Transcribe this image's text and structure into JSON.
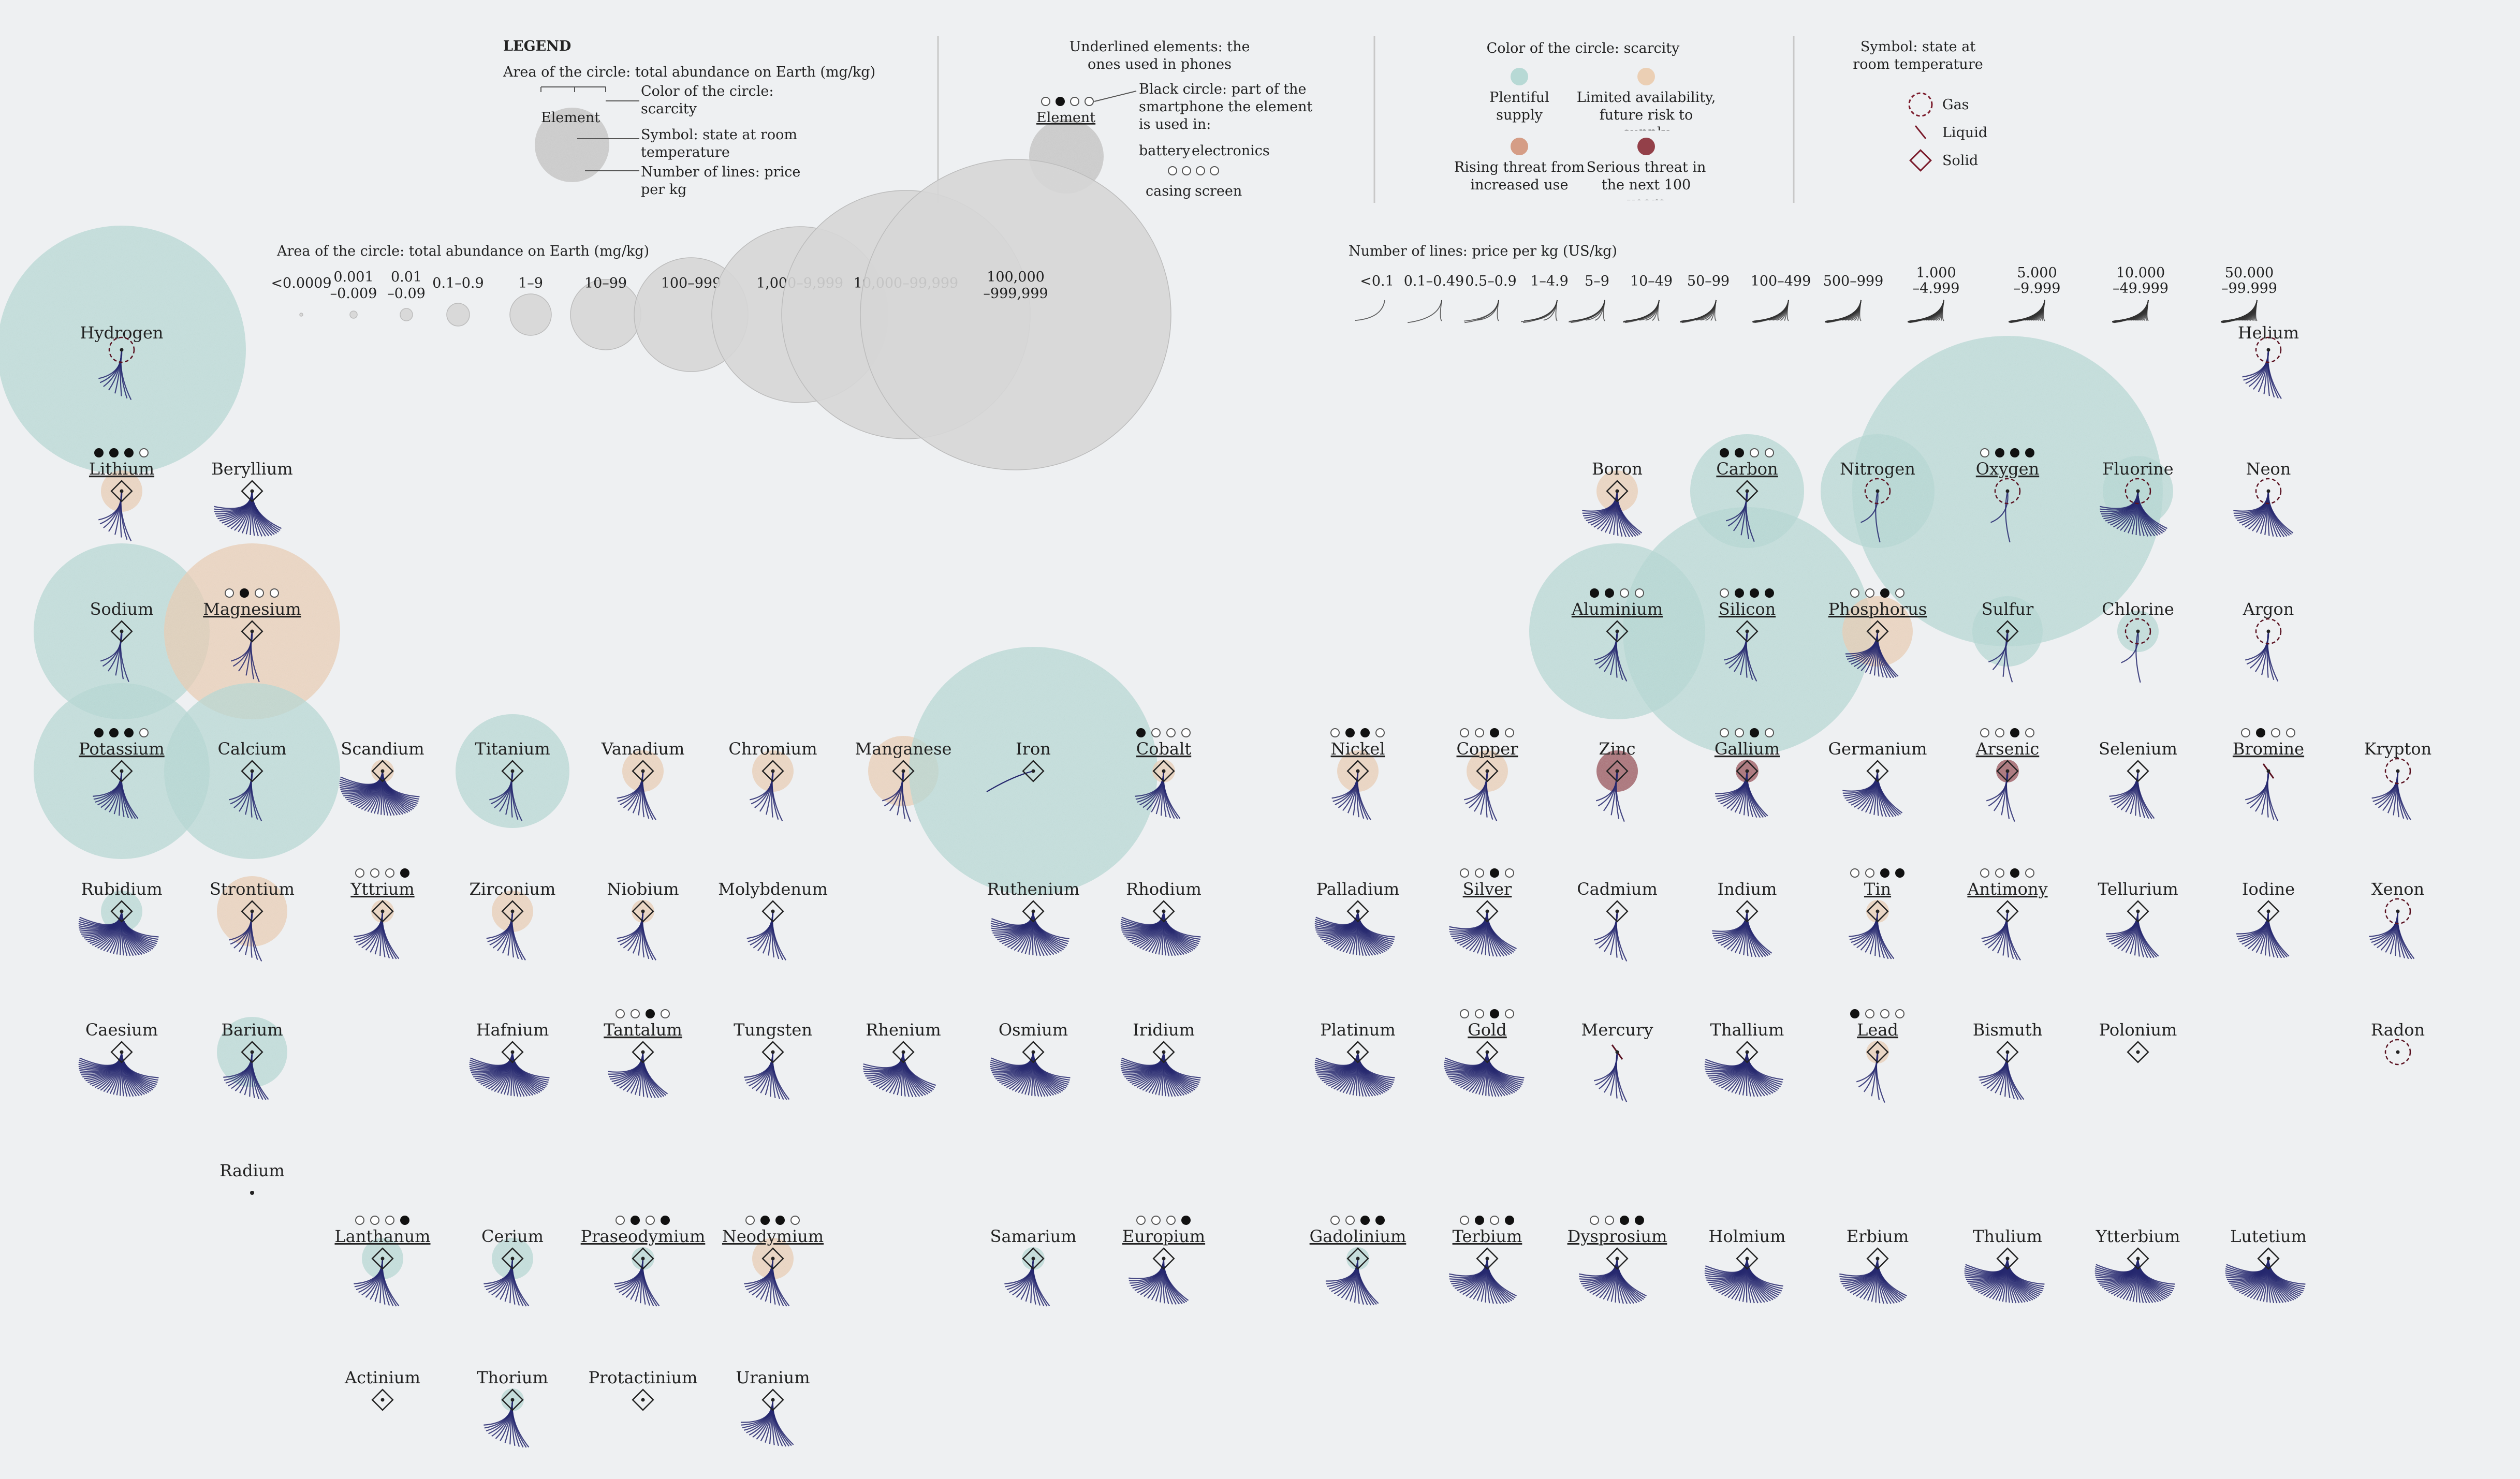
{
  "legend": {
    "title": "LEGEND",
    "area_desc": "Area of the circle: total abundance on Earth (mg/kg)",
    "example_element": "Element",
    "ann_color": "Color of the circle: scarcity",
    "ann_symbol": "Symbol: state at room temperature",
    "ann_lines": "Number of lines: price per kg",
    "phones_title": "Underlined elements: the ones used in phones",
    "phones_black": "Black circle: part of the smartphone the element is used in:",
    "phones_parts": [
      "battery",
      "electronics",
      "casing",
      "screen"
    ],
    "scarcity_title": "Color of the circle: scarcity",
    "scarcity_items": [
      {
        "label": "Plentiful supply",
        "color": "#b7d9d5"
      },
      {
        "label": "Limited availability, future risk to supply",
        "color": "#ebcfb4"
      },
      {
        "label": "Rising threat from increased use",
        "color": "#d59d86"
      },
      {
        "label": "Serious threat in the next 100 years",
        "color": "#934049"
      }
    ],
    "state_title": "Symbol: state at room temperature",
    "states": [
      "Gas",
      "Liquid",
      "Solid"
    ]
  },
  "size_scale": {
    "title": "Area of the circle: total abundance on Earth (mg/kg)",
    "bins": [
      "<0.0009",
      "0.001 –0.009",
      "0.01 –0.09",
      "0.1–0.9",
      "1–9",
      "10–99",
      "100–999",
      "1,000–9,999",
      "10,000–99,999",
      "100,000 –999,999"
    ]
  },
  "price_scale": {
    "title": "Number of lines: price per kg (US/kg)",
    "bins": [
      "<0.1",
      "0.1–0.49",
      "0.5–0.9",
      "1–4.9",
      "5–9",
      "10–49",
      "50–99",
      "100–499",
      "500–999",
      "1.000 –4.999",
      "5.000 –9.999",
      "10.000 –49.999",
      "50.000 –99.999"
    ]
  },
  "colors": {
    "plentiful": "#b7d9d5",
    "limited": "#ebcfb4",
    "rising": "#d59d86",
    "serious": "#934049",
    "lines": "#26286e",
    "gray": "#d4d4d4"
  },
  "elements": [
    {
      "name": "Hydrogen",
      "row": 0,
      "col": 0,
      "a": 8,
      "s": 0,
      "st": "g",
      "p": 4,
      "ph": null
    },
    {
      "name": "Helium",
      "row": 0,
      "col": 17,
      "a": 0,
      "s": 3,
      "st": "g",
      "p": 5,
      "ph": null
    },
    {
      "name": "Lithium",
      "row": 1,
      "col": 0,
      "a": 4,
      "s": 1,
      "st": "s",
      "p": 4,
      "ph": [
        1,
        1,
        1,
        0
      ]
    },
    {
      "name": "Beryllium",
      "row": 1,
      "col": 1,
      "a": 2,
      "s": 0,
      "st": "s",
      "p": 9,
      "ph": null
    },
    {
      "name": "Boron",
      "row": 1,
      "col": 12,
      "a": 4,
      "s": 1,
      "st": "s",
      "p": 8,
      "ph": null
    },
    {
      "name": "Carbon",
      "row": 1,
      "col": 13,
      "a": 6,
      "s": 0,
      "st": "s",
      "p": 3,
      "ph": [
        1,
        1,
        0,
        0
      ]
    },
    {
      "name": "Nitrogen",
      "row": 1,
      "col": 14,
      "a": 6,
      "s": 0,
      "st": "g",
      "p": 1,
      "ph": null
    },
    {
      "name": "Oxygen",
      "row": 1,
      "col": 15,
      "a": 9,
      "s": 0,
      "st": "g",
      "p": 1,
      "ph": [
        0,
        1,
        1,
        1
      ]
    },
    {
      "name": "Fluorine",
      "row": 1,
      "col": 16,
      "a": 5,
      "s": 0,
      "st": "g",
      "p": 9,
      "ph": null
    },
    {
      "name": "Neon",
      "row": 1,
      "col": 17,
      "a": 0,
      "s": 0,
      "st": "g",
      "p": 8,
      "ph": null
    },
    {
      "name": "Sodium",
      "row": 2,
      "col": 0,
      "a": 7,
      "s": 0,
      "st": "s",
      "p": 3,
      "ph": null
    },
    {
      "name": "Magnesium",
      "row": 2,
      "col": 1,
      "a": 7,
      "s": 1,
      "st": "s",
      "p": 3,
      "ph": [
        0,
        1,
        0,
        0
      ]
    },
    {
      "name": "Aluminium",
      "row": 2,
      "col": 12,
      "a": 7,
      "s": 0,
      "st": "s",
      "p": 4,
      "ph": [
        1,
        1,
        0,
        0
      ]
    },
    {
      "name": "Silicon",
      "row": 2,
      "col": 13,
      "a": 8,
      "s": 0,
      "st": "s",
      "p": 4,
      "ph": [
        0,
        1,
        1,
        1
      ]
    },
    {
      "name": "Phosphorus",
      "row": 2,
      "col": 14,
      "a": 5,
      "s": 1,
      "st": "s",
      "p": 7,
      "ph": [
        0,
        0,
        1,
        0
      ]
    },
    {
      "name": "Sulfur",
      "row": 2,
      "col": 15,
      "a": 5,
      "s": 0,
      "st": "s",
      "p": 2,
      "ph": null
    },
    {
      "name": "Chlorine",
      "row": 2,
      "col": 16,
      "a": 4,
      "s": 0,
      "st": "g",
      "p": 1,
      "ph": null
    },
    {
      "name": "Argon",
      "row": 2,
      "col": 17,
      "a": 2,
      "s": 0,
      "st": "g",
      "p": 4,
      "ph": null
    },
    {
      "name": "Potassium",
      "row": 3,
      "col": 0,
      "a": 7,
      "s": 0,
      "st": "s",
      "p": 6,
      "ph": [
        1,
        1,
        1,
        0
      ]
    },
    {
      "name": "Calcium",
      "row": 3,
      "col": 1,
      "a": 7,
      "s": 0,
      "st": "s",
      "p": 4,
      "ph": null
    },
    {
      "name": "Scandium",
      "row": 3,
      "col": 2,
      "a": 3,
      "s": 1,
      "st": "s",
      "p": 12,
      "ph": null
    },
    {
      "name": "Titanium",
      "row": 3,
      "col": 3,
      "a": 6,
      "s": 0,
      "st": "s",
      "p": 4,
      "ph": null
    },
    {
      "name": "Vanadium",
      "row": 3,
      "col": 4,
      "a": 4,
      "s": 1,
      "st": "s",
      "p": 5,
      "ph": null
    },
    {
      "name": "Chromium",
      "row": 3,
      "col": 5,
      "a": 4,
      "s": 1,
      "st": "s",
      "p": 4,
      "ph": null
    },
    {
      "name": "Manganese",
      "row": 3,
      "col": 6,
      "a": 5,
      "s": 1,
      "st": "s",
      "p": 3,
      "ph": null
    },
    {
      "name": "Iron",
      "row": 3,
      "col": 7,
      "a": 8,
      "s": 0,
      "st": "s",
      "p": 0,
      "ph": null
    },
    {
      "name": "Cobalt",
      "row": 3,
      "col": 8,
      "a": 3,
      "s": 1,
      "st": "s",
      "p": 6,
      "ph": [
        1,
        0,
        0,
        0
      ]
    },
    {
      "name": "Nickel",
      "row": 3,
      "col": 10,
      "a": 4,
      "s": 1,
      "st": "s",
      "p": 5,
      "ph": [
        0,
        1,
        1,
        0
      ]
    },
    {
      "name": "Copper",
      "row": 3,
      "col": 11,
      "a": 4,
      "s": 1,
      "st": "s",
      "p": 4,
      "ph": [
        0,
        0,
        1,
        0
      ]
    },
    {
      "name": "Zinc",
      "row": 3,
      "col": 12,
      "a": 4,
      "s": 3,
      "st": "s",
      "p": 3,
      "ph": null
    },
    {
      "name": "Gallium",
      "row": 3,
      "col": 13,
      "a": 3,
      "s": 3,
      "st": "s",
      "p": 7,
      "ph": [
        0,
        0,
        1,
        0
      ]
    },
    {
      "name": "Germanium",
      "row": 3,
      "col": 14,
      "a": 2,
      "s": 3,
      "st": "s",
      "p": 8,
      "ph": null
    },
    {
      "name": "Arsenic",
      "row": 3,
      "col": 15,
      "a": 3,
      "s": 3,
      "st": "s",
      "p": 3,
      "ph": [
        0,
        0,
        1,
        0
      ]
    },
    {
      "name": "Selenium",
      "row": 3,
      "col": 16,
      "a": 1,
      "s": 1,
      "st": "s",
      "p": 6,
      "ph": null
    },
    {
      "name": "Bromine",
      "row": 3,
      "col": 17,
      "a": 2,
      "s": 0,
      "st": "l",
      "p": 4,
      "ph": [
        0,
        1,
        0,
        0
      ]
    },
    {
      "name": "Krypton",
      "row": 3,
      "col": 18,
      "a": 0,
      "s": 0,
      "st": "g",
      "p": 5,
      "ph": null
    },
    {
      "name": "Rubidium",
      "row": 4,
      "col": 0,
      "a": 4,
      "s": 0,
      "st": "s",
      "p": 12,
      "ph": null
    },
    {
      "name": "Strontium",
      "row": 4,
      "col": 1,
      "a": 5,
      "s": 1,
      "st": "s",
      "p": 4,
      "ph": null
    },
    {
      "name": "Yttrium",
      "row": 4,
      "col": 2,
      "a": 3,
      "s": 1,
      "st": "s",
      "p": 6,
      "ph": [
        0,
        0,
        0,
        1
      ]
    },
    {
      "name": "Zirconium",
      "row": 4,
      "col": 3,
      "a": 4,
      "s": 1,
      "st": "s",
      "p": 5,
      "ph": null
    },
    {
      "name": "Niobium",
      "row": 4,
      "col": 4,
      "a": 3,
      "s": 1,
      "st": "s",
      "p": 5,
      "ph": null
    },
    {
      "name": "Molybdenum",
      "row": 4,
      "col": 5,
      "a": 2,
      "s": 1,
      "st": "s",
      "p": 5,
      "ph": null
    },
    {
      "name": "Ruthenium",
      "row": 4,
      "col": 7,
      "a": 0,
      "s": 0,
      "st": "s",
      "p": 11,
      "ph": null
    },
    {
      "name": "Rhodium",
      "row": 4,
      "col": 8,
      "a": 0,
      "s": 0,
      "st": "s",
      "p": 12,
      "ph": null
    },
    {
      "name": "Palladium",
      "row": 4,
      "col": 10,
      "a": 0,
      "s": 0,
      "st": "s",
      "p": 12,
      "ph": null
    },
    {
      "name": "Silver",
      "row": 4,
      "col": 11,
      "a": 1,
      "s": 3,
      "st": "s",
      "p": 9,
      "ph": [
        0,
        0,
        1,
        0
      ]
    },
    {
      "name": "Cadmium",
      "row": 4,
      "col": 12,
      "a": 1,
      "s": 1,
      "st": "s",
      "p": 4,
      "ph": null
    },
    {
      "name": "Indium",
      "row": 4,
      "col": 13,
      "a": 1,
      "s": 3,
      "st": "s",
      "p": 8,
      "ph": null
    },
    {
      "name": "Tin",
      "row": 4,
      "col": 14,
      "a": 3,
      "s": 1,
      "st": "s",
      "p": 6,
      "ph": [
        0,
        0,
        1,
        1
      ]
    },
    {
      "name": "Antimony",
      "row": 4,
      "col": 15,
      "a": 1,
      "s": 1,
      "st": "s",
      "p": 5,
      "ph": [
        0,
        0,
        1,
        0
      ]
    },
    {
      "name": "Tellurium",
      "row": 4,
      "col": 16,
      "a": 0,
      "s": 2,
      "st": "s",
      "p": 7,
      "ph": null
    },
    {
      "name": "Iodine",
      "row": 4,
      "col": 17,
      "a": 0,
      "s": 0,
      "st": "s",
      "p": 7,
      "ph": null
    },
    {
      "name": "Xenon",
      "row": 4,
      "col": 18,
      "a": 0,
      "s": 0,
      "st": "g",
      "p": 6,
      "ph": null
    },
    {
      "name": "Caesium",
      "row": 5,
      "col": 0,
      "a": 2,
      "s": 0,
      "st": "s",
      "p": 12,
      "ph": null
    },
    {
      "name": "Barium",
      "row": 5,
      "col": 1,
      "a": 5,
      "s": 0,
      "st": "s",
      "p": 6,
      "ph": null
    },
    {
      "name": "Hafnium",
      "row": 5,
      "col": 3,
      "a": 2,
      "s": 3,
      "st": "s",
      "p": 12,
      "ph": null
    },
    {
      "name": "Tantalum",
      "row": 5,
      "col": 4,
      "a": 2,
      "s": 2,
      "st": "s",
      "p": 8,
      "ph": [
        0,
        0,
        1,
        0
      ]
    },
    {
      "name": "Tungsten",
      "row": 5,
      "col": 5,
      "a": 2,
      "s": 1,
      "st": "s",
      "p": 6,
      "ph": null
    },
    {
      "name": "Rhenium",
      "row": 5,
      "col": 6,
      "a": 0,
      "s": 0,
      "st": "s",
      "p": 10,
      "ph": null
    },
    {
      "name": "Osmium",
      "row": 5,
      "col": 7,
      "a": 0,
      "s": 0,
      "st": "s",
      "p": 12,
      "ph": null
    },
    {
      "name": "Iridium",
      "row": 5,
      "col": 8,
      "a": 0,
      "s": 0,
      "st": "s",
      "p": 12,
      "ph": null
    },
    {
      "name": "Platinum",
      "row": 5,
      "col": 10,
      "a": 0,
      "s": 0,
      "st": "s",
      "p": 12,
      "ph": null
    },
    {
      "name": "Gold",
      "row": 5,
      "col": 11,
      "a": 0,
      "s": 0,
      "st": "s",
      "p": 12,
      "ph": [
        0,
        0,
        1,
        0
      ]
    },
    {
      "name": "Mercury",
      "row": 5,
      "col": 12,
      "a": 0,
      "s": 1,
      "st": "l",
      "p": 4,
      "ph": null
    },
    {
      "name": "Thallium",
      "row": 5,
      "col": 13,
      "a": 1,
      "s": 1,
      "st": "s",
      "p": 11,
      "ph": null
    },
    {
      "name": "Lead",
      "row": 5,
      "col": 14,
      "a": 3,
      "s": 1,
      "st": "s",
      "p": 3,
      "ph": [
        1,
        0,
        0,
        0
      ]
    },
    {
      "name": "Bismuth",
      "row": 5,
      "col": 15,
      "a": 1,
      "s": 1,
      "st": "s",
      "p": 6,
      "ph": null
    },
    {
      "name": "Polonium",
      "row": 5,
      "col": 16,
      "a": 0,
      "s": 0,
      "st": "s",
      "p": 0,
      "ph": null
    },
    {
      "name": "Radon",
      "row": 5,
      "col": 18,
      "a": 0,
      "s": 0,
      "st": "g",
      "p": 0,
      "ph": null
    },
    {
      "name": "Radium",
      "row": 6,
      "col": 1,
      "a": 0,
      "s": 0,
      "st": "s",
      "p": 0,
      "ph": null
    },
    {
      "name": "Lanthanum",
      "row": 7,
      "col": 2,
      "a": 4,
      "s": 0,
      "st": "s",
      "p": 6,
      "ph": [
        0,
        0,
        0,
        1
      ]
    },
    {
      "name": "Cerium",
      "row": 7,
      "col": 3,
      "a": 4,
      "s": 0,
      "st": "s",
      "p": 6,
      "ph": null
    },
    {
      "name": "Praseodymium",
      "row": 7,
      "col": 4,
      "a": 3,
      "s": 0,
      "st": "s",
      "p": 6,
      "ph": [
        0,
        1,
        0,
        1
      ]
    },
    {
      "name": "Neodymium",
      "row": 7,
      "col": 5,
      "a": 4,
      "s": 1,
      "st": "s",
      "p": 6,
      "ph": [
        0,
        1,
        1,
        0
      ]
    },
    {
      "name": "Samarium",
      "row": 7,
      "col": 7,
      "a": 3,
      "s": 0,
      "st": "s",
      "p": 6,
      "ph": null
    },
    {
      "name": "Europium",
      "row": 7,
      "col": 8,
      "a": 2,
      "s": 0,
      "st": "s",
      "p": 8,
      "ph": [
        0,
        0,
        0,
        1
      ]
    },
    {
      "name": "Gadolinium",
      "row": 7,
      "col": 10,
      "a": 3,
      "s": 0,
      "st": "s",
      "p": 7,
      "ph": [
        0,
        0,
        1,
        1
      ]
    },
    {
      "name": "Terbium",
      "row": 7,
      "col": 11,
      "a": 1,
      "s": 0,
      "st": "s",
      "p": 9,
      "ph": [
        0,
        1,
        0,
        1
      ]
    },
    {
      "name": "Dysprosium",
      "row": 7,
      "col": 12,
      "a": 2,
      "s": 0,
      "st": "s",
      "p": 9,
      "ph": [
        0,
        0,
        1,
        1
      ]
    },
    {
      "name": "Holmium",
      "row": 7,
      "col": 13,
      "a": 1,
      "s": 0,
      "st": "s",
      "p": 11,
      "ph": null
    },
    {
      "name": "Erbium",
      "row": 7,
      "col": 14,
      "a": 2,
      "s": 0,
      "st": "s",
      "p": 9,
      "ph": null
    },
    {
      "name": "Thulium",
      "row": 7,
      "col": 15,
      "a": 0,
      "s": 0,
      "st": "s",
      "p": 12,
      "ph": null
    },
    {
      "name": "Ytterbium",
      "row": 7,
      "col": 16,
      "a": 2,
      "s": 0,
      "st": "s",
      "p": 12,
      "ph": null
    },
    {
      "name": "Lutetium",
      "row": 7,
      "col": 17,
      "a": 0,
      "s": 0,
      "st": "s",
      "p": 12,
      "ph": null
    },
    {
      "name": "Actinium",
      "row": 8,
      "col": 2,
      "a": 0,
      "s": 0,
      "st": "s",
      "p": 0,
      "ph": null
    },
    {
      "name": "Thorium",
      "row": 8,
      "col": 3,
      "a": 3,
      "s": 0,
      "st": "s",
      "p": 6,
      "ph": null
    },
    {
      "name": "Protactinium",
      "row": 8,
      "col": 4,
      "a": 0,
      "s": 0,
      "st": "s",
      "p": 0,
      "ph": null
    },
    {
      "name": "Uranium",
      "row": 8,
      "col": 5,
      "a": 2,
      "s": 2,
      "st": "s",
      "p": 7,
      "ph": null
    }
  ]
}
